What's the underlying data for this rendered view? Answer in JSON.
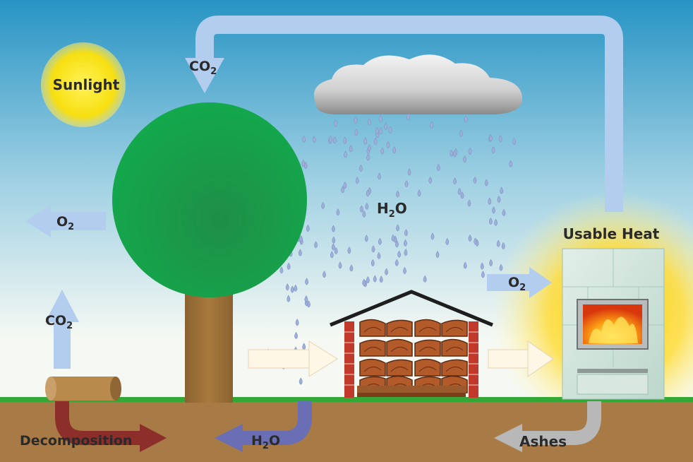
{
  "labels": {
    "sunlight": "Sunlight",
    "usable_heat": "Usable Heat",
    "decomposition": "Decomposition",
    "ashes": "Ashes",
    "co2_top": {
      "main": "CO",
      "sub": "2"
    },
    "co2_left": {
      "main": "CO",
      "sub": "2"
    },
    "o2_left": {
      "main": "O",
      "sub": "2"
    },
    "o2_right": {
      "main": "O",
      "sub": "2"
    },
    "h2o_rain": {
      "pre": "H",
      "sub": "2",
      "post": "O"
    },
    "h2o_ground": {
      "pre": "H",
      "sub": "2",
      "post": "O"
    }
  },
  "colors": {
    "sky_top": "#2a9bc9",
    "sky_bottom": "#f4f8f4",
    "ground": "#a87a45",
    "grass": "#3aa63a",
    "sun": "#f7e11a",
    "tree_crown": "#16a04a",
    "trunk": "#a07338",
    "cycle_arrow": "#b3cdee",
    "decomposition_arrow": "#8c2f2a",
    "h2o_ground_arrow": "#6a6fb5",
    "ashes_arrow": "#b8b8b8",
    "flow_arrow": "#fff7e6",
    "raindrop": "#9fb0d8",
    "heat_glow": "#ffd21a"
  }
}
